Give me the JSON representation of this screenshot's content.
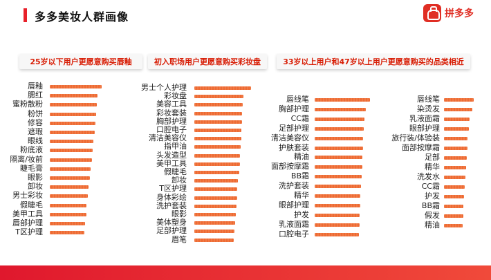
{
  "header": {
    "title": "多多美妆人群画像"
  },
  "logo": {
    "text": "拼多多"
  },
  "colors": {
    "accent": "#e8202a",
    "bar": "#ef6f3a",
    "panel_title_text": "#d81e06"
  },
  "chart_data": [
    {
      "type": "bar",
      "orientation": "horizontal",
      "title": "25岁以下用户更愿意购买唇釉",
      "categories": [
        "唇釉",
        "腮红",
        "蜜粉散粉",
        "粉饼",
        "修容",
        "遮瑕",
        "眼线",
        "粉底液",
        "隔离/妆前",
        "睫毛膏",
        "眼影",
        "卸妆",
        "男士彩妆",
        "假睫毛",
        "美甲工具",
        "唇部护理",
        "T区护理"
      ],
      "values": [
        100,
        92,
        90,
        89,
        88,
        86,
        84,
        83,
        81,
        79,
        77,
        75,
        73,
        71,
        70,
        68,
        67
      ],
      "xlim": [
        0,
        100
      ],
      "grid": false
    },
    {
      "type": "bar",
      "orientation": "horizontal",
      "title": "初入职场用户更愿意购买彩妆盘",
      "categories": [
        "男士个人护理",
        "彩妆盘",
        "美容工具",
        "彩妆套装",
        "胸部护理",
        "口腔电子",
        "清洁美容仪",
        "指甲油",
        "头发造型",
        "美甲工具",
        "假睫毛",
        "卸妆",
        "T区护理",
        "身体彩绘",
        "洗护套装",
        "眼影",
        "美体塑身",
        "足部护理",
        "眉笔"
      ],
      "values": [
        100,
        86,
        85,
        84,
        84,
        83,
        83,
        82,
        81,
        80,
        79,
        77,
        76,
        75,
        74,
        73,
        72,
        71,
        70
      ],
      "xlim": [
        0,
        100
      ],
      "grid": false
    },
    {
      "type": "bar",
      "orientation": "horizontal",
      "title": "33岁以上用户和47岁以上用户更愿意购买的品类相近",
      "categories": [
        "唇线笔",
        "胸部护理",
        "CC霜",
        "足部护理",
        "清洁美容仪",
        "护肤套装",
        "精油",
        "面部按摩霜",
        "BB霜",
        "洗护套装",
        "精华",
        "眼部护理",
        "护发",
        "乳液面霜",
        "口腔电子"
      ],
      "values": [
        100,
        92,
        90,
        89,
        88,
        87,
        86,
        86,
        85,
        84,
        83,
        82,
        81,
        81,
        80
      ],
      "xlim": [
        0,
        100
      ],
      "grid": false
    },
    {
      "type": "bar",
      "orientation": "horizontal",
      "title": "",
      "categories": [
        "唇线笔",
        "染烫发",
        "乳液面霜",
        "眼部护理",
        "旅行装/体验装",
        "面部按摩霜",
        "足部",
        "精华",
        "洗发水",
        "CC霜",
        "护发",
        "BB霜",
        "假发",
        "精油"
      ],
      "values": [
        100,
        95,
        85,
        83,
        80,
        78,
        76,
        74,
        72,
        70,
        68,
        66,
        64,
        62
      ],
      "xlim": [
        0,
        100
      ],
      "grid": false
    }
  ]
}
